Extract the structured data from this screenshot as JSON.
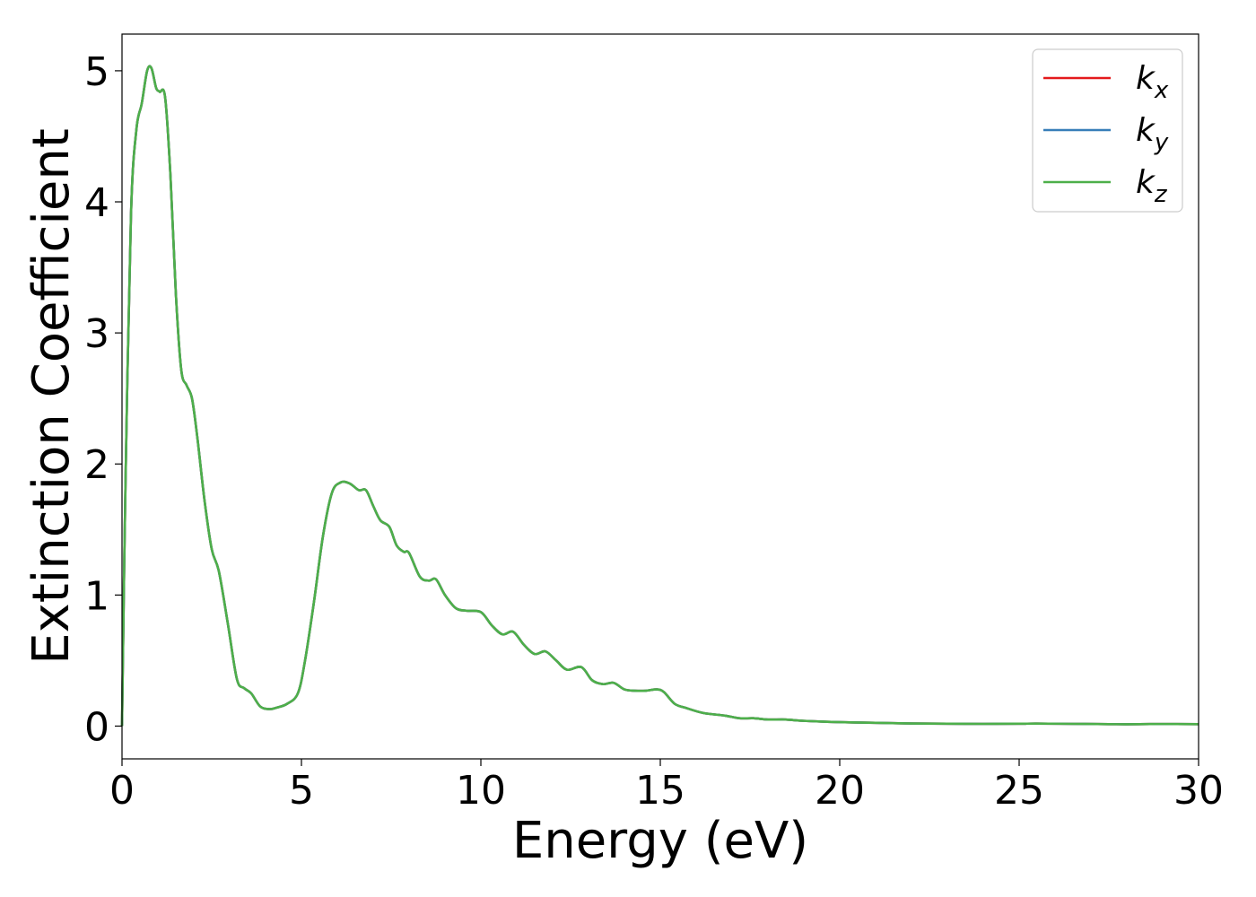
{
  "chart_data": {
    "type": "line",
    "title": "",
    "xlabel": "Energy (eV)",
    "ylabel": "Extinction Coefficient",
    "xlim": [
      0,
      30
    ],
    "ylim": [
      -0.25,
      5.28
    ],
    "x_ticks": [
      0,
      5,
      10,
      15,
      20,
      25,
      30
    ],
    "y_ticks": [
      0,
      1,
      2,
      3,
      4,
      5
    ],
    "grid": false,
    "legend_position": "top-right",
    "series": [
      {
        "name": "k_x",
        "base": "k",
        "sub": "x",
        "color": "#e41a1c",
        "x": [
          0,
          0.1,
          0.25,
          0.4,
          0.55,
          0.7,
          0.82,
          0.95,
          1.05,
          1.2,
          1.35,
          1.5,
          1.65,
          1.8,
          1.95,
          2.1,
          2.3,
          2.5,
          2.7,
          2.95,
          3.2,
          3.4,
          3.6,
          3.85,
          4.1,
          4.3,
          4.6,
          4.9,
          5.1,
          5.35,
          5.6,
          5.85,
          6.1,
          6.35,
          6.6,
          6.8,
          7.0,
          7.2,
          7.45,
          7.65,
          7.85,
          8.0,
          8.3,
          8.55,
          8.75,
          9.0,
          9.3,
          9.6,
          10.0,
          10.3,
          10.6,
          10.9,
          11.2,
          11.5,
          11.8,
          12.1,
          12.4,
          12.8,
          13.1,
          13.4,
          13.7,
          14.0,
          14.3,
          14.6,
          14.9,
          15.1,
          15.4,
          15.7,
          16.2,
          16.8,
          17.2,
          17.6,
          18.0,
          18.5,
          19.0,
          20.0,
          21.0,
          22.0,
          23.0,
          24.0,
          25.0,
          25.5,
          26.5,
          27.5,
          28.0,
          29.0,
          30.0
        ],
        "y": [
          0.0,
          1.9,
          3.9,
          4.55,
          4.75,
          5.0,
          5.02,
          4.87,
          4.84,
          4.8,
          4.2,
          3.3,
          2.72,
          2.6,
          2.5,
          2.2,
          1.72,
          1.35,
          1.18,
          0.78,
          0.36,
          0.29,
          0.25,
          0.15,
          0.13,
          0.14,
          0.17,
          0.25,
          0.5,
          0.95,
          1.45,
          1.78,
          1.86,
          1.85,
          1.8,
          1.8,
          1.68,
          1.57,
          1.52,
          1.38,
          1.33,
          1.32,
          1.14,
          1.11,
          1.12,
          1.0,
          0.9,
          0.88,
          0.87,
          0.77,
          0.7,
          0.72,
          0.62,
          0.55,
          0.57,
          0.5,
          0.43,
          0.45,
          0.35,
          0.32,
          0.33,
          0.28,
          0.27,
          0.27,
          0.28,
          0.26,
          0.17,
          0.14,
          0.1,
          0.08,
          0.06,
          0.06,
          0.05,
          0.05,
          0.04,
          0.03,
          0.025,
          0.02,
          0.018,
          0.017,
          0.018,
          0.019,
          0.017,
          0.015,
          0.014,
          0.016,
          0.015
        ]
      },
      {
        "name": "k_y",
        "base": "k",
        "sub": "y",
        "color": "#377eb8",
        "x": [
          0,
          0.1,
          0.25,
          0.4,
          0.55,
          0.7,
          0.82,
          0.95,
          1.05,
          1.2,
          1.35,
          1.5,
          1.65,
          1.8,
          1.95,
          2.1,
          2.3,
          2.5,
          2.7,
          2.95,
          3.2,
          3.4,
          3.6,
          3.85,
          4.1,
          4.3,
          4.6,
          4.9,
          5.1,
          5.35,
          5.6,
          5.85,
          6.1,
          6.35,
          6.6,
          6.8,
          7.0,
          7.2,
          7.45,
          7.65,
          7.85,
          8.0,
          8.3,
          8.55,
          8.75,
          9.0,
          9.3,
          9.6,
          10.0,
          10.3,
          10.6,
          10.9,
          11.2,
          11.5,
          11.8,
          12.1,
          12.4,
          12.8,
          13.1,
          13.4,
          13.7,
          14.0,
          14.3,
          14.6,
          14.9,
          15.1,
          15.4,
          15.7,
          16.2,
          16.8,
          17.2,
          17.6,
          18.0,
          18.5,
          19.0,
          20.0,
          21.0,
          22.0,
          23.0,
          24.0,
          25.0,
          25.5,
          26.5,
          27.5,
          28.0,
          29.0,
          30.0
        ],
        "y": [
          0.0,
          1.9,
          3.9,
          4.55,
          4.75,
          5.0,
          5.02,
          4.87,
          4.84,
          4.8,
          4.2,
          3.3,
          2.72,
          2.6,
          2.5,
          2.2,
          1.72,
          1.35,
          1.18,
          0.78,
          0.36,
          0.29,
          0.25,
          0.15,
          0.13,
          0.14,
          0.17,
          0.25,
          0.5,
          0.95,
          1.45,
          1.78,
          1.86,
          1.85,
          1.8,
          1.8,
          1.68,
          1.57,
          1.52,
          1.38,
          1.33,
          1.32,
          1.14,
          1.11,
          1.12,
          1.0,
          0.9,
          0.88,
          0.87,
          0.77,
          0.7,
          0.72,
          0.62,
          0.55,
          0.57,
          0.5,
          0.43,
          0.45,
          0.35,
          0.32,
          0.33,
          0.28,
          0.27,
          0.27,
          0.28,
          0.26,
          0.17,
          0.14,
          0.1,
          0.08,
          0.06,
          0.06,
          0.05,
          0.05,
          0.04,
          0.03,
          0.025,
          0.02,
          0.018,
          0.017,
          0.018,
          0.019,
          0.017,
          0.015,
          0.014,
          0.016,
          0.015
        ]
      },
      {
        "name": "k_z",
        "base": "k",
        "sub": "z",
        "color": "#4daf4a",
        "x": [
          0,
          0.1,
          0.25,
          0.4,
          0.55,
          0.7,
          0.82,
          0.95,
          1.05,
          1.2,
          1.35,
          1.5,
          1.65,
          1.8,
          1.95,
          2.1,
          2.3,
          2.5,
          2.7,
          2.95,
          3.2,
          3.4,
          3.6,
          3.85,
          4.1,
          4.3,
          4.6,
          4.9,
          5.1,
          5.35,
          5.6,
          5.85,
          6.1,
          6.35,
          6.6,
          6.8,
          7.0,
          7.2,
          7.45,
          7.65,
          7.85,
          8.0,
          8.3,
          8.55,
          8.75,
          9.0,
          9.3,
          9.6,
          10.0,
          10.3,
          10.6,
          10.9,
          11.2,
          11.5,
          11.8,
          12.1,
          12.4,
          12.8,
          13.1,
          13.4,
          13.7,
          14.0,
          14.3,
          14.6,
          14.9,
          15.1,
          15.4,
          15.7,
          16.2,
          16.8,
          17.2,
          17.6,
          18.0,
          18.5,
          19.0,
          20.0,
          21.0,
          22.0,
          23.0,
          24.0,
          25.0,
          25.5,
          26.5,
          27.5,
          28.0,
          29.0,
          30.0
        ],
        "y": [
          0.0,
          1.9,
          3.9,
          4.55,
          4.75,
          5.0,
          5.02,
          4.87,
          4.84,
          4.8,
          4.2,
          3.3,
          2.72,
          2.6,
          2.5,
          2.2,
          1.72,
          1.35,
          1.18,
          0.78,
          0.36,
          0.29,
          0.25,
          0.15,
          0.13,
          0.14,
          0.17,
          0.25,
          0.5,
          0.95,
          1.45,
          1.78,
          1.86,
          1.85,
          1.8,
          1.8,
          1.68,
          1.57,
          1.52,
          1.38,
          1.33,
          1.32,
          1.14,
          1.11,
          1.12,
          1.0,
          0.9,
          0.88,
          0.87,
          0.77,
          0.7,
          0.72,
          0.62,
          0.55,
          0.57,
          0.5,
          0.43,
          0.45,
          0.35,
          0.32,
          0.33,
          0.28,
          0.27,
          0.27,
          0.28,
          0.26,
          0.17,
          0.14,
          0.1,
          0.08,
          0.06,
          0.06,
          0.05,
          0.05,
          0.04,
          0.03,
          0.025,
          0.02,
          0.018,
          0.017,
          0.018,
          0.019,
          0.017,
          0.015,
          0.014,
          0.016,
          0.015
        ]
      }
    ]
  }
}
